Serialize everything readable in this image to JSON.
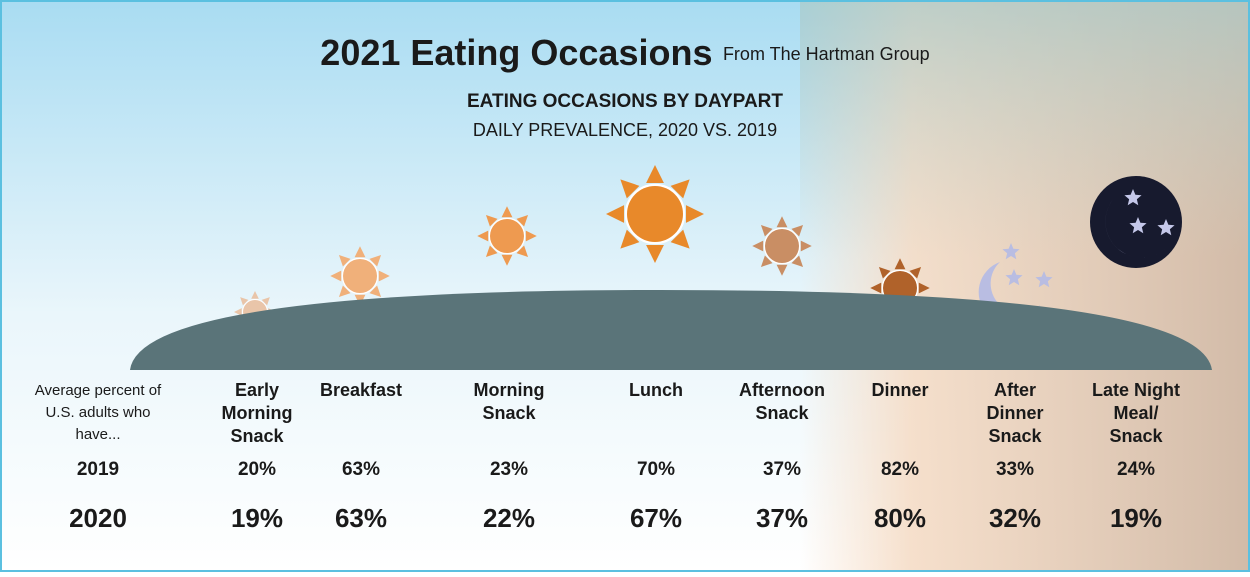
{
  "header": {
    "title": "2021 Eating Occasions",
    "source": "From The Hartman Group",
    "subtitle": "EATING OCCASIONS BY DAYPART",
    "subtitle_2": "DAILY PREVALENCE, 2020 VS. 2019"
  },
  "table": {
    "row_header": [
      "Average percent of",
      "U.S. adults who",
      "have..."
    ],
    "columns": [
      [
        "Early",
        "Morning",
        "Snack"
      ],
      [
        "Breakfast"
      ],
      [
        "Morning",
        "Snack"
      ],
      [
        "Lunch"
      ],
      [
        "Afternoon",
        "Snack"
      ],
      [
        "Dinner"
      ],
      [
        "After",
        "Dinner",
        "Snack"
      ],
      [
        "Late Night",
        "Meal/",
        "Snack"
      ]
    ],
    "rows": [
      {
        "label": "2019",
        "values": [
          "20%",
          "63%",
          "23%",
          "70%",
          "37%",
          "82%",
          "33%",
          "24%"
        ]
      },
      {
        "label": "2020",
        "values": [
          "19%",
          "63%",
          "22%",
          "67%",
          "37%",
          "80%",
          "32%",
          "19%"
        ]
      }
    ]
  }
}
